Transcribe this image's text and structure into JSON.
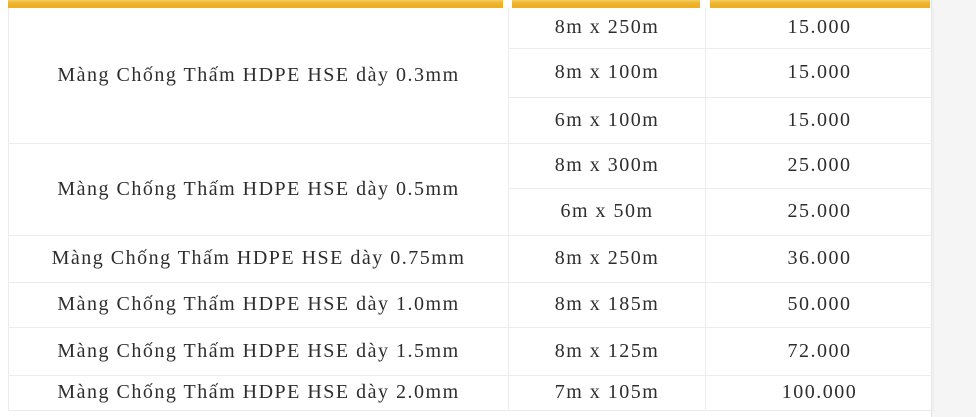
{
  "page": {
    "background": "#ffffff",
    "side_strip_background": "#f5f5f5",
    "accent_color": "#f0b32a",
    "border_color": "#ececec",
    "text_color": "#2d2d2d"
  },
  "price_table": {
    "products": [
      {
        "name": "Màng Chống Thấm HDPE HSE dày 0.3mm",
        "variants": [
          {
            "size": "8m x 250m",
            "price": "15.000"
          },
          {
            "size": "8m x 100m",
            "price": "15.000"
          },
          {
            "size": "6m x 100m",
            "price": "15.000"
          }
        ]
      },
      {
        "name": "Màng Chống Thấm HDPE HSE dày 0.5mm",
        "variants": [
          {
            "size": "8m x 300m",
            "price": "25.000"
          },
          {
            "size": "6m x 50m",
            "price": "25.000"
          }
        ]
      },
      {
        "name": "Màng Chống Thấm HDPE HSE dày 0.75mm",
        "variants": [
          {
            "size": "8m x 250m",
            "price": "36.000"
          }
        ]
      },
      {
        "name": "Màng Chống Thấm HDPE HSE dày 1.0mm",
        "variants": [
          {
            "size": "8m x 185m",
            "price": "50.000"
          }
        ]
      },
      {
        "name": "Màng Chống Thấm HDPE HSE dày 1.5mm",
        "variants": [
          {
            "size": "8m x 125m",
            "price": "72.000"
          }
        ]
      },
      {
        "name": "Màng Chống Thấm HDPE HSE dày 2.0mm",
        "variants": [
          {
            "size": "7m x 105m",
            "price": "100.000"
          }
        ]
      }
    ]
  }
}
